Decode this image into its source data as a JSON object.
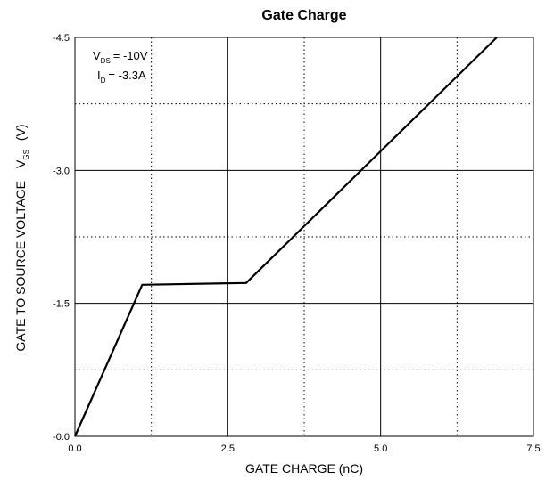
{
  "chart_data": {
    "type": "line",
    "title": "Gate Charge",
    "xlabel": "GATE CHARGE (nC)",
    "ylabel": "GATE TO SOURCE VOLTAGE",
    "ylabel_symbol": "V",
    "ylabel_subscript": "GS",
    "ylabel_unit": "(V)",
    "xlim": [
      0,
      7.5
    ],
    "ylim": [
      0,
      -4.5
    ],
    "x_ticks": [
      0,
      2.5,
      5,
      7.5
    ],
    "x_tick_labels": [
      "0.0",
      "2.5",
      "5.0",
      "7.5"
    ],
    "y_ticks": [
      0,
      -1.5,
      -3,
      -4.5
    ],
    "y_tick_labels": [
      "-0.0",
      "-1.5",
      "-3.0",
      "-4.5"
    ],
    "grid": "solid at major ticks, dotted at midpoints",
    "annotations": [
      {
        "symbol": "V",
        "subscript": "DS",
        "text": "= -10V"
      },
      {
        "symbol": "I",
        "subscript": "D",
        "text": "= -3.3A"
      }
    ],
    "series": [
      {
        "x": [
          0,
          1.1,
          2.8,
          6.9
        ],
        "y": [
          0,
          -1.71,
          -1.73,
          -4.5
        ]
      }
    ]
  }
}
